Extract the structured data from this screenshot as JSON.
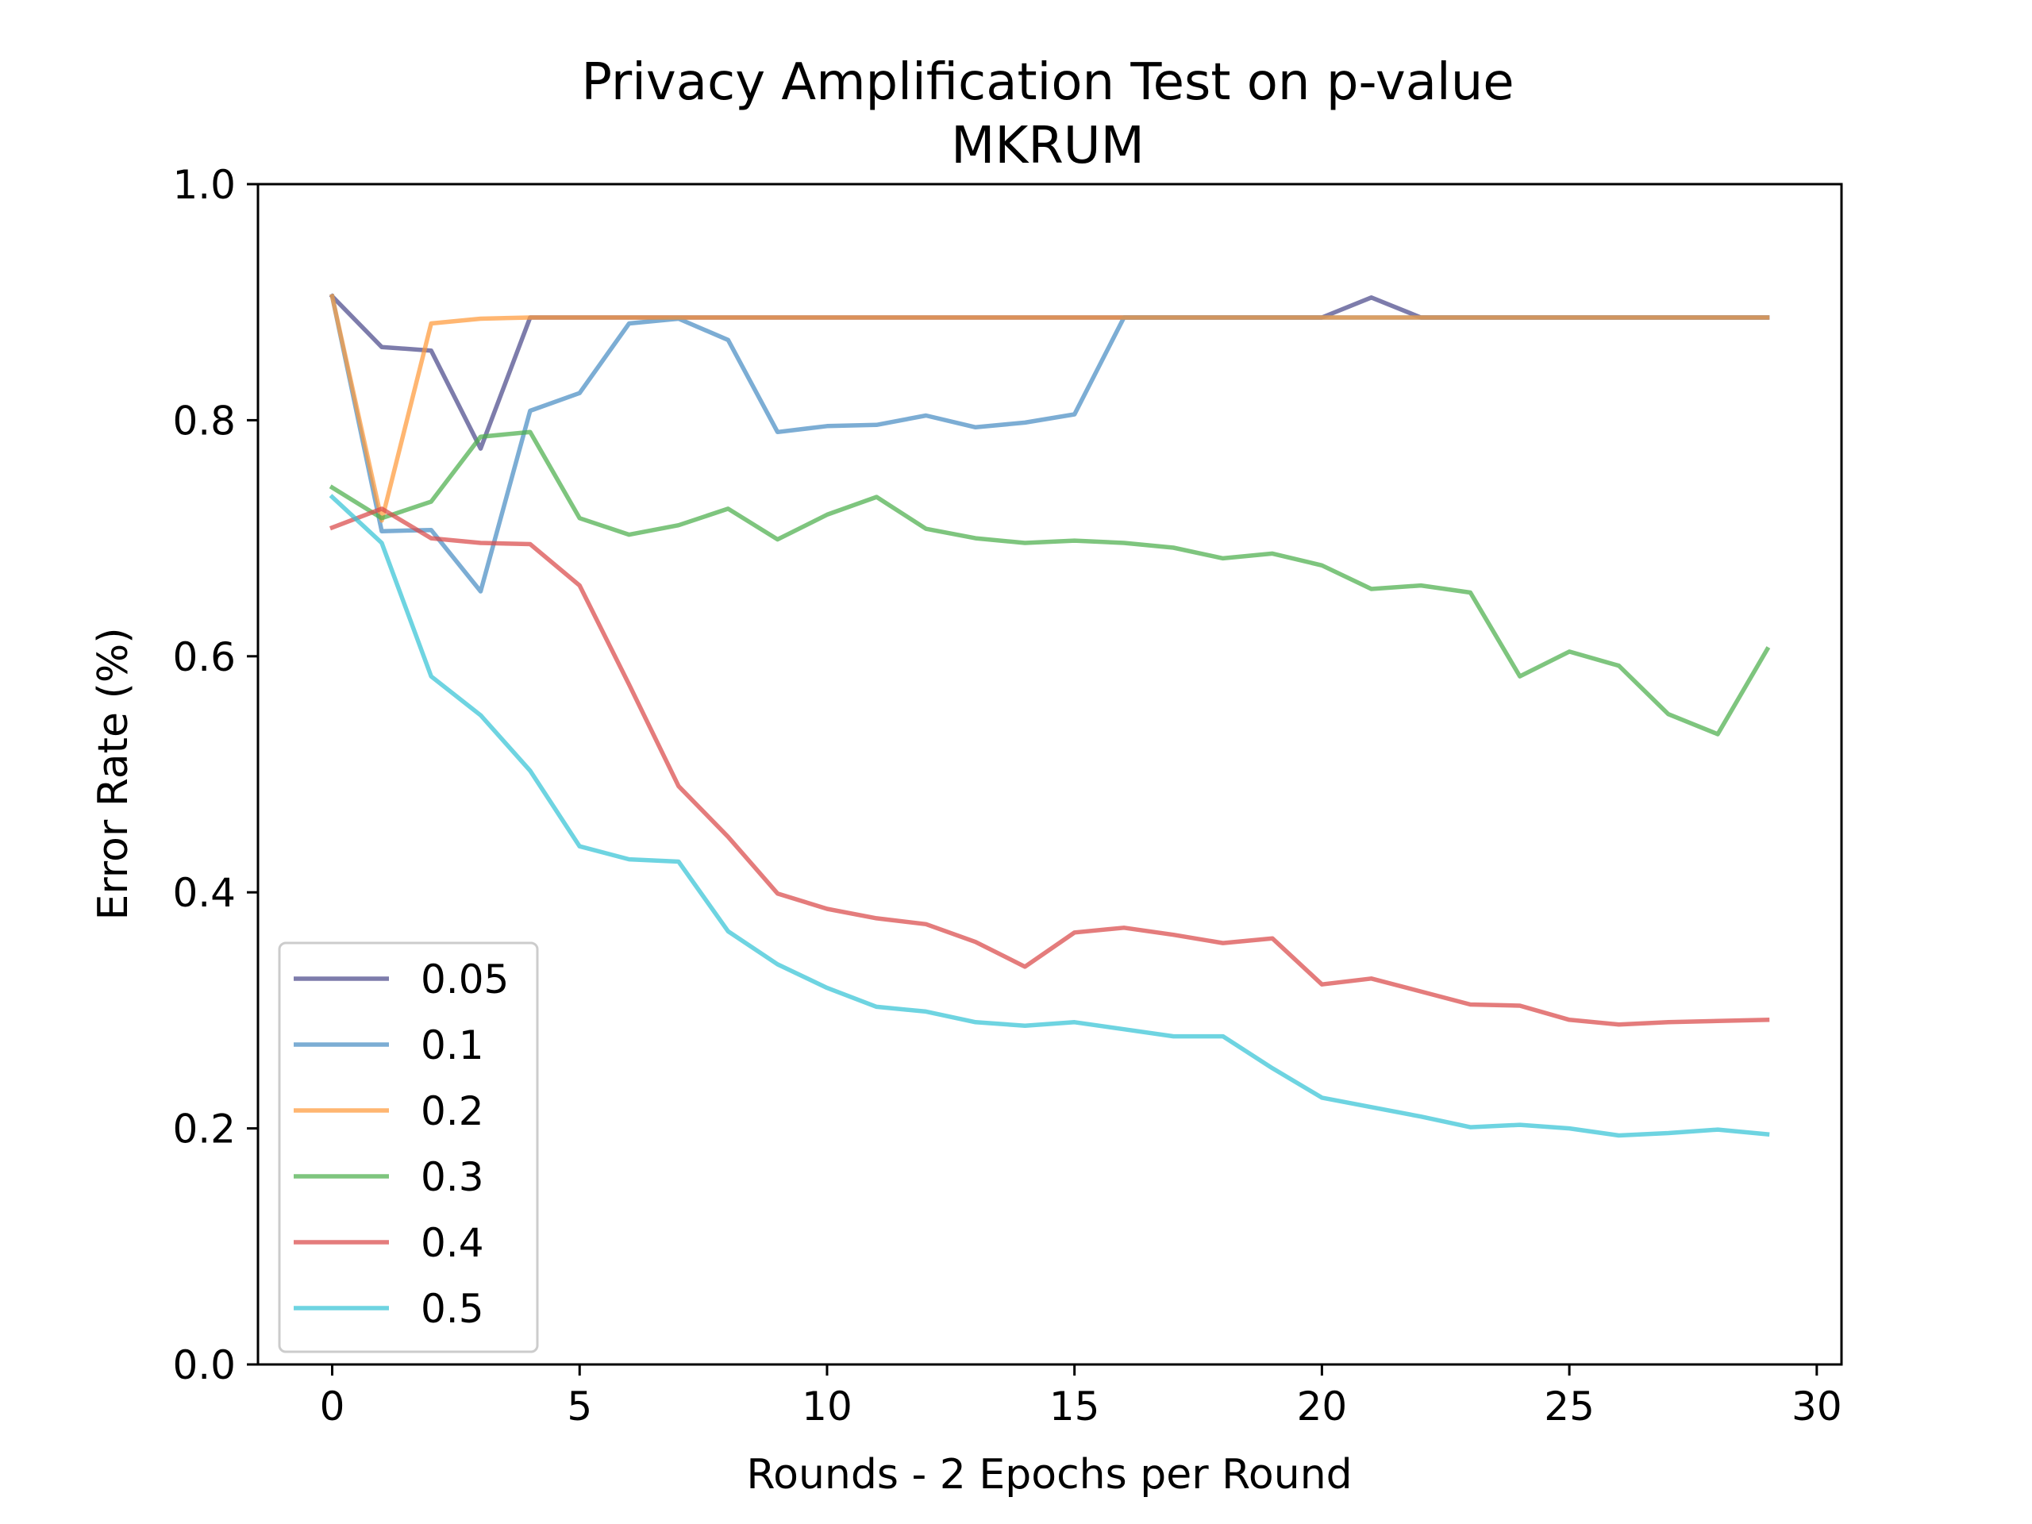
{
  "chart_data": {
    "type": "line",
    "title": "Privacy Amplification Test on p-value",
    "subtitle": "MKRUM",
    "xlabel": "Rounds - 2 Epochs per Round",
    "ylabel": "Error Rate (%)",
    "xlim": [
      -1.5,
      30.5
    ],
    "ylim": [
      0.0,
      1.0
    ],
    "xticks": [
      0,
      5,
      10,
      15,
      20,
      25,
      30
    ],
    "yticks": [
      0.0,
      0.2,
      0.4,
      0.6,
      0.8,
      1.0
    ],
    "xtick_labels": [
      "0",
      "5",
      "10",
      "15",
      "20",
      "25",
      "30"
    ],
    "ytick_labels": [
      "0.0",
      "0.2",
      "0.4",
      "0.6",
      "0.8",
      "1.0"
    ],
    "grid": false,
    "legend_position": "lower-left",
    "x": [
      0,
      1,
      2,
      3,
      4,
      5,
      6,
      7,
      8,
      9,
      10,
      11,
      12,
      13,
      14,
      15,
      16,
      17,
      18,
      19,
      20,
      21,
      22,
      23,
      24,
      25,
      26,
      27,
      28,
      29
    ],
    "series": [
      {
        "name": "0.05",
        "color": "#4b4a8a",
        "values": [
          0.905,
          0.862,
          0.859,
          0.776,
          0.887,
          0.887,
          0.887,
          0.887,
          0.887,
          0.887,
          0.887,
          0.887,
          0.887,
          0.887,
          0.887,
          0.887,
          0.887,
          0.887,
          0.887,
          0.887,
          0.887,
          0.904,
          0.887,
          0.887,
          0.887,
          0.887,
          0.887,
          0.887,
          0.887,
          0.887
        ]
      },
      {
        "name": "0.1",
        "color": "#4a8ec4",
        "values": [
          0.905,
          0.706,
          0.707,
          0.655,
          0.808,
          0.823,
          0.882,
          0.886,
          0.868,
          0.79,
          0.795,
          0.796,
          0.804,
          0.794,
          0.798,
          0.805,
          0.887,
          0.887,
          0.887,
          0.887,
          0.887,
          0.887,
          0.887,
          0.887,
          0.887,
          0.887,
          0.887,
          0.887,
          0.887,
          0.887
        ]
      },
      {
        "name": "0.2",
        "color": "#ff9a3a",
        "values": [
          0.905,
          0.715,
          0.882,
          0.886,
          0.887,
          0.887,
          0.887,
          0.887,
          0.887,
          0.887,
          0.887,
          0.887,
          0.887,
          0.887,
          0.887,
          0.887,
          0.887,
          0.887,
          0.887,
          0.887,
          0.887,
          0.887,
          0.887,
          0.887,
          0.887,
          0.887,
          0.887,
          0.887,
          0.887,
          0.887
        ]
      },
      {
        "name": "0.3",
        "color": "#4caf4c",
        "values": [
          0.743,
          0.717,
          0.731,
          0.786,
          0.79,
          0.717,
          0.703,
          0.711,
          0.725,
          0.699,
          0.72,
          0.735,
          0.708,
          0.7,
          0.696,
          0.698,
          0.696,
          0.692,
          0.683,
          0.687,
          0.677,
          0.657,
          0.66,
          0.654,
          0.583,
          0.604,
          0.592,
          0.551,
          0.534,
          0.606
        ]
      },
      {
        "name": "0.4",
        "color": "#d94a4a",
        "values": [
          0.709,
          0.725,
          0.7,
          0.696,
          0.695,
          0.66,
          0.576,
          0.49,
          0.447,
          0.399,
          0.386,
          0.378,
          0.373,
          0.358,
          0.337,
          0.366,
          0.37,
          0.364,
          0.357,
          0.361,
          0.322,
          0.327,
          0.316,
          0.305,
          0.304,
          0.292,
          0.288,
          0.29,
          0.291,
          0.292
        ]
      },
      {
        "name": "0.5",
        "color": "#36c3d6",
        "values": [
          0.735,
          0.696,
          0.583,
          0.55,
          0.503,
          0.439,
          0.428,
          0.426,
          0.367,
          0.339,
          0.319,
          0.303,
          0.299,
          0.29,
          0.287,
          0.29,
          0.284,
          0.278,
          0.278,
          0.251,
          0.226,
          0.218,
          0.21,
          0.201,
          0.203,
          0.2,
          0.194,
          0.196,
          0.199,
          0.195
        ]
      }
    ]
  }
}
